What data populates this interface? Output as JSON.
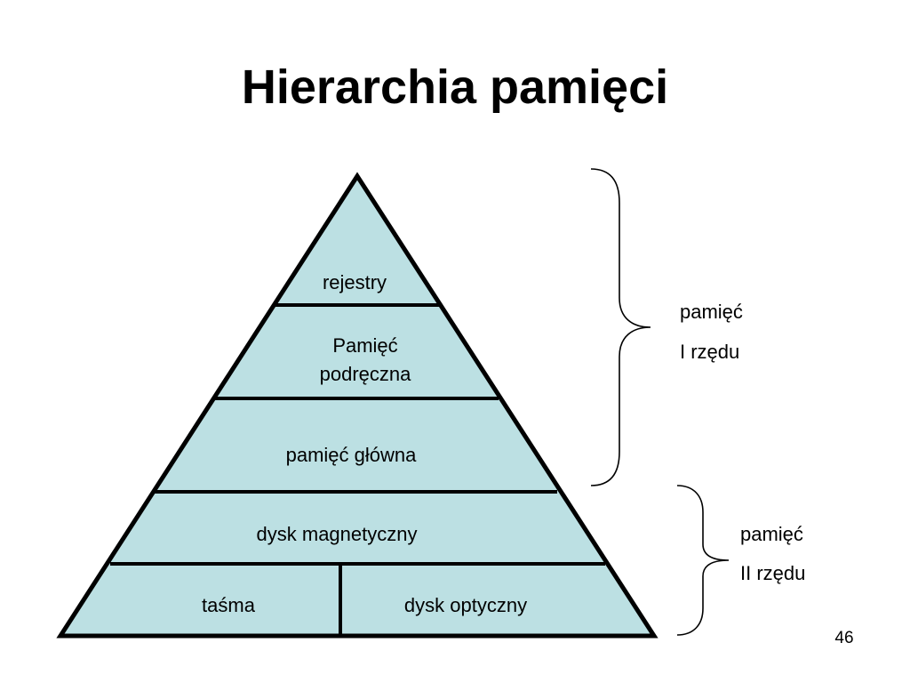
{
  "slide": {
    "title": "Hierarchia pamięci",
    "page_number": "46"
  },
  "pyramid": {
    "fill_color": "#bce0e3",
    "stroke_color": "#000000",
    "levels": {
      "registers": "rejestry",
      "cache_line1": "Pamięć",
      "cache_line2": "podręczna",
      "main_memory": "pamięć główna",
      "magnetic_disk": "dysk magnetyczny",
      "tape": "taśma",
      "optical_disk": "dysk optyczny"
    }
  },
  "brackets": {
    "primary": {
      "line1": "pamięć",
      "line2": "I rzędu"
    },
    "secondary": {
      "line1": "pamięć",
      "line2": "II rzędu"
    }
  }
}
